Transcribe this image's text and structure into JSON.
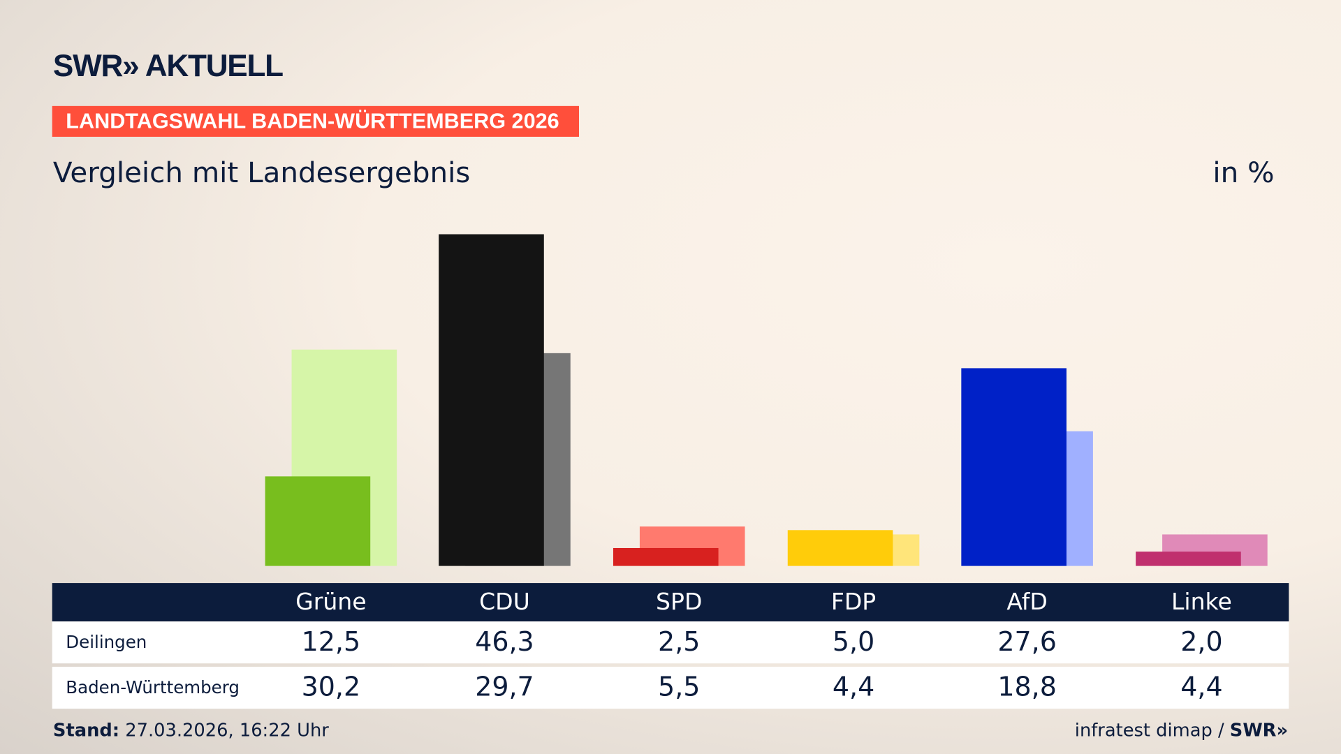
{
  "brand": "SWR AKTUELL",
  "kicker": "LANDTAGSWAHL BADEN-WÜRTTEMBERG 2026",
  "subtitle": "Vergleich mit Landesergebnis",
  "unit": "in %",
  "footer": {
    "stand_label": "Stand:",
    "stand_value": " 27.03.2026, 16:22 Uhr",
    "source": "infratest dimap / ",
    "source_brand": "SWR»"
  },
  "chart_data": {
    "type": "bar",
    "categories": [
      "Grüne",
      "CDU",
      "SPD",
      "FDP",
      "AfD",
      "Linke"
    ],
    "series": [
      {
        "name": "Deilingen",
        "values": [
          12.5,
          46.3,
          2.5,
          5.0,
          27.6,
          2.0
        ],
        "display": [
          "12,5",
          "46,3",
          "2,5",
          "5,0",
          "27,6",
          "2,0"
        ]
      },
      {
        "name": "Baden-Württemberg",
        "values": [
          30.2,
          29.7,
          5.5,
          4.4,
          18.8,
          4.4
        ],
        "display": [
          "30,2",
          "29,7",
          "5,5",
          "4,4",
          "18,8",
          "4,4"
        ]
      }
    ],
    "colors": {
      "dark": [
        "#78be1e",
        "#141414",
        "#d8211f",
        "#ffcc0a",
        "#0021c7",
        "#c0306e"
      ],
      "light": [
        "#d6f5a8",
        "#767676",
        "#ff7a6e",
        "#ffe57a",
        "#a0b0ff",
        "#e08ab8"
      ]
    },
    "ylim": [
      0,
      50
    ],
    "grid": false
  }
}
